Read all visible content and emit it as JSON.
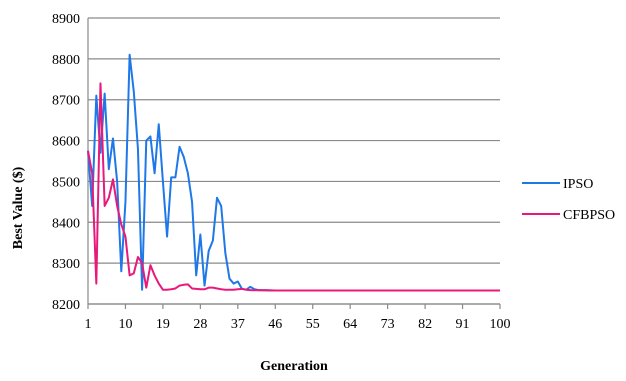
{
  "chart_data": {
    "type": "line",
    "title": "",
    "xlabel": "Generation",
    "ylabel": "Best Value ($)",
    "ylim": [
      8200,
      8900
    ],
    "xlim": [
      1,
      100
    ],
    "yticks": [
      8200,
      8300,
      8400,
      8500,
      8600,
      8700,
      8800,
      8900
    ],
    "xticks": [
      1,
      10,
      19,
      28,
      37,
      46,
      55,
      64,
      73,
      82,
      91,
      100
    ],
    "grid": "horizontal",
    "legend_position": "right",
    "series": [
      {
        "name": "IPSO",
        "color": "#1f78e8",
        "points": [
          [
            1,
            8575
          ],
          [
            2,
            8440
          ],
          [
            3,
            8710
          ],
          [
            4,
            8570
          ],
          [
            5,
            8715
          ],
          [
            6,
            8530
          ],
          [
            7,
            8605
          ],
          [
            8,
            8500
          ],
          [
            9,
            8280
          ],
          [
            10,
            8450
          ],
          [
            11,
            8810
          ],
          [
            12,
            8720
          ],
          [
            13,
            8580
          ],
          [
            14,
            8235
          ],
          [
            15,
            8600
          ],
          [
            16,
            8610
          ],
          [
            17,
            8520
          ],
          [
            18,
            8640
          ],
          [
            19,
            8500
          ],
          [
            20,
            8365
          ],
          [
            21,
            8510
          ],
          [
            22,
            8510
          ],
          [
            23,
            8585
          ],
          [
            24,
            8560
          ],
          [
            25,
            8520
          ],
          [
            26,
            8450
          ],
          [
            27,
            8270
          ],
          [
            28,
            8370
          ],
          [
            29,
            8245
          ],
          [
            30,
            8330
          ],
          [
            31,
            8355
          ],
          [
            32,
            8460
          ],
          [
            33,
            8440
          ],
          [
            34,
            8325
          ],
          [
            35,
            8262
          ],
          [
            36,
            8250
          ],
          [
            37,
            8255
          ],
          [
            38,
            8237
          ],
          [
            39,
            8235
          ],
          [
            40,
            8242
          ],
          [
            41,
            8236
          ],
          [
            42,
            8234
          ],
          [
            43,
            8234
          ],
          [
            44,
            8234
          ],
          [
            46,
            8233
          ],
          [
            50,
            8233
          ],
          [
            60,
            8233
          ],
          [
            70,
            8233
          ],
          [
            80,
            8233
          ],
          [
            90,
            8233
          ],
          [
            100,
            8233
          ]
        ]
      },
      {
        "name": "CFBPSO",
        "color": "#e8197a",
        "points": [
          [
            1,
            8575
          ],
          [
            2,
            8520
          ],
          [
            3,
            8250
          ],
          [
            4,
            8740
          ],
          [
            5,
            8440
          ],
          [
            6,
            8460
          ],
          [
            7,
            8505
          ],
          [
            8,
            8440
          ],
          [
            9,
            8395
          ],
          [
            10,
            8365
          ],
          [
            11,
            8270
          ],
          [
            12,
            8275
          ],
          [
            13,
            8315
          ],
          [
            14,
            8300
          ],
          [
            15,
            8240
          ],
          [
            16,
            8295
          ],
          [
            17,
            8270
          ],
          [
            18,
            8250
          ],
          [
            19,
            8235
          ],
          [
            20,
            8235
          ],
          [
            21,
            8236
          ],
          [
            22,
            8238
          ],
          [
            23,
            8245
          ],
          [
            24,
            8247
          ],
          [
            25,
            8248
          ],
          [
            26,
            8238
          ],
          [
            27,
            8237
          ],
          [
            28,
            8236
          ],
          [
            29,
            8236
          ],
          [
            30,
            8240
          ],
          [
            31,
            8240
          ],
          [
            32,
            8238
          ],
          [
            33,
            8236
          ],
          [
            34,
            8235
          ],
          [
            35,
            8235
          ],
          [
            36,
            8235
          ],
          [
            37,
            8236
          ],
          [
            38,
            8237
          ],
          [
            39,
            8235
          ],
          [
            40,
            8234
          ],
          [
            45,
            8233
          ],
          [
            50,
            8233
          ],
          [
            60,
            8233
          ],
          [
            70,
            8233
          ],
          [
            80,
            8233
          ],
          [
            90,
            8233
          ],
          [
            100,
            8233
          ]
        ]
      }
    ]
  }
}
